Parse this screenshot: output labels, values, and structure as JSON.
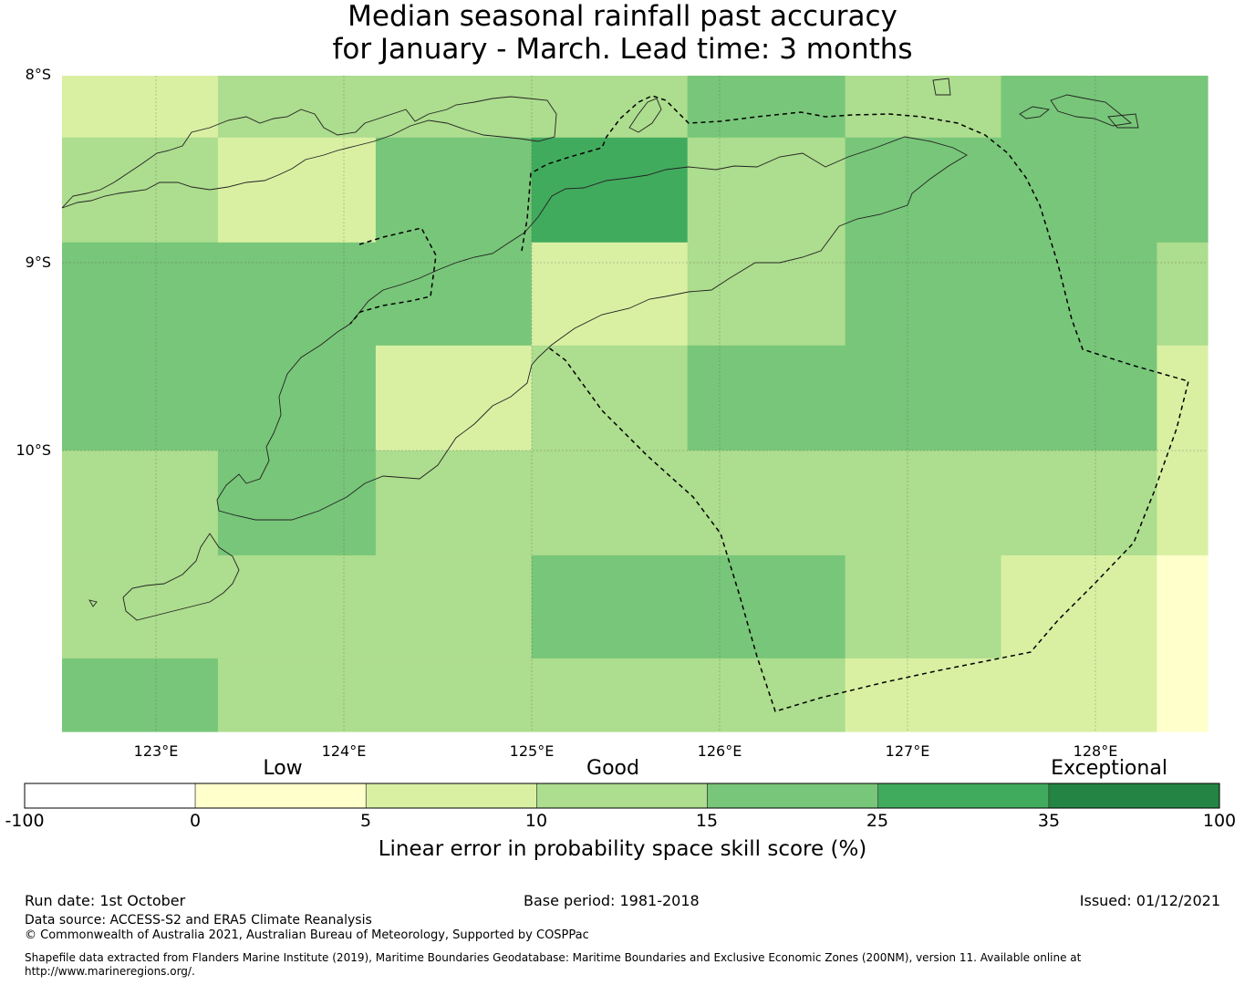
{
  "title": {
    "line1": "Median seasonal rainfall past accuracy",
    "line2": "for January - March. Lead time: 3 months"
  },
  "map": {
    "lat_labels": [
      "8°S",
      "9°S",
      "10°S"
    ],
    "lon_labels": [
      "123°E",
      "124°E",
      "125°E",
      "126°E",
      "127°E",
      "128°E"
    ],
    "lon_range": [
      122.5,
      128.6
    ],
    "lat_range": [
      -11.5,
      -8.0
    ],
    "cells": [
      {
        "lon": [
          122.5,
          123.33
        ],
        "lat": [
          -8.0,
          -8.33
        ],
        "class": "5-10"
      },
      {
        "lon": [
          123.33,
          125.0
        ],
        "lat": [
          -8.0,
          -8.33
        ],
        "class": "10-15"
      },
      {
        "lon": [
          125.0,
          125.83
        ],
        "lat": [
          -8.0,
          -8.33
        ],
        "class": "10-15"
      },
      {
        "lon": [
          125.83,
          126.67
        ],
        "lat": [
          -8.0,
          -8.33
        ],
        "class": "15-25"
      },
      {
        "lon": [
          126.67,
          127.5
        ],
        "lat": [
          -8.0,
          -8.33
        ],
        "class": "10-15"
      },
      {
        "lon": [
          127.5,
          128.6
        ],
        "lat": [
          -8.0,
          -8.33
        ],
        "class": "15-25"
      },
      {
        "lon": [
          122.5,
          123.33
        ],
        "lat": [
          -8.33,
          -8.89
        ],
        "class": "10-15"
      },
      {
        "lon": [
          123.33,
          124.17
        ],
        "lat": [
          -8.33,
          -8.89
        ],
        "class": "5-10"
      },
      {
        "lon": [
          124.17,
          125.0
        ],
        "lat": [
          -8.33,
          -8.89
        ],
        "class": "15-25"
      },
      {
        "lon": [
          125.0,
          125.83
        ],
        "lat": [
          -8.33,
          -8.89
        ],
        "class": "25-35"
      },
      {
        "lon": [
          125.83,
          126.67
        ],
        "lat": [
          -8.33,
          -8.89
        ],
        "class": "10-15"
      },
      {
        "lon": [
          126.67,
          128.6
        ],
        "lat": [
          -8.33,
          -8.89
        ],
        "class": "15-25"
      },
      {
        "lon": [
          122.5,
          125.0
        ],
        "lat": [
          -8.89,
          -9.44
        ],
        "class": "15-25"
      },
      {
        "lon": [
          125.0,
          125.83
        ],
        "lat": [
          -8.89,
          -9.44
        ],
        "class": "5-10"
      },
      {
        "lon": [
          125.83,
          126.67
        ],
        "lat": [
          -8.89,
          -9.44
        ],
        "class": "10-15"
      },
      {
        "lon": [
          126.67,
          128.33
        ],
        "lat": [
          -8.89,
          -9.44
        ],
        "class": "15-25"
      },
      {
        "lon": [
          128.33,
          128.6
        ],
        "lat": [
          -8.89,
          -9.44
        ],
        "class": "10-15"
      },
      {
        "lon": [
          122.5,
          124.17
        ],
        "lat": [
          -9.44,
          -10.0
        ],
        "class": "15-25"
      },
      {
        "lon": [
          124.17,
          125.0
        ],
        "lat": [
          -9.44,
          -10.0
        ],
        "class": "5-10"
      },
      {
        "lon": [
          125.0,
          125.83
        ],
        "lat": [
          -9.44,
          -10.0
        ],
        "class": "10-15"
      },
      {
        "lon": [
          125.83,
          128.33
        ],
        "lat": [
          -9.44,
          -10.0
        ],
        "class": "15-25"
      },
      {
        "lon": [
          128.33,
          128.6
        ],
        "lat": [
          -9.44,
          -10.0
        ],
        "class": "5-10"
      },
      {
        "lon": [
          122.5,
          123.33
        ],
        "lat": [
          -10.0,
          -10.56
        ],
        "class": "10-15"
      },
      {
        "lon": [
          123.33,
          124.17
        ],
        "lat": [
          -10.0,
          -10.56
        ],
        "class": "15-25"
      },
      {
        "lon": [
          124.17,
          128.33
        ],
        "lat": [
          -10.0,
          -10.56
        ],
        "class": "10-15"
      },
      {
        "lon": [
          128.33,
          128.6
        ],
        "lat": [
          -10.0,
          -10.56
        ],
        "class": "5-10"
      },
      {
        "lon": [
          122.5,
          125.0
        ],
        "lat": [
          -10.56,
          -11.11
        ],
        "class": "10-15"
      },
      {
        "lon": [
          125.0,
          126.67
        ],
        "lat": [
          -10.56,
          -11.11
        ],
        "class": "15-25"
      },
      {
        "lon": [
          126.67,
          127.5
        ],
        "lat": [
          -10.56,
          -11.11
        ],
        "class": "10-15"
      },
      {
        "lon": [
          127.5,
          128.33
        ],
        "lat": [
          -10.56,
          -11.11
        ],
        "class": "5-10"
      },
      {
        "lon": [
          128.33,
          128.6
        ],
        "lat": [
          -10.56,
          -11.11
        ],
        "class": "0-5"
      },
      {
        "lon": [
          122.5,
          123.33
        ],
        "lat": [
          -11.11,
          -11.5
        ],
        "class": "15-25"
      },
      {
        "lon": [
          123.33,
          126.67
        ],
        "lat": [
          -11.11,
          -11.5
        ],
        "class": "10-15"
      },
      {
        "lon": [
          126.67,
          128.33
        ],
        "lat": [
          -11.11,
          -11.5
        ],
        "class": "5-10"
      },
      {
        "lon": [
          128.33,
          128.6
        ],
        "lat": [
          -11.11,
          -11.5
        ],
        "class": "0-5"
      }
    ]
  },
  "colorbar": {
    "ticks": [
      "-100",
      "0",
      "5",
      "10",
      "15",
      "25",
      "35",
      "100"
    ],
    "classes": [
      {
        "id": "-100-0",
        "color": "#ffffff"
      },
      {
        "id": "0-5",
        "color": "#ffffcc"
      },
      {
        "id": "5-10",
        "color": "#d9f0a3"
      },
      {
        "id": "10-15",
        "color": "#addd8e"
      },
      {
        "id": "15-25",
        "color": "#78c679"
      },
      {
        "id": "25-35",
        "color": "#41ab5d"
      },
      {
        "id": "35-100",
        "color": "#238443"
      }
    ],
    "categories": [
      "Low",
      "Good",
      "Exceptional"
    ],
    "label": "Linear error in probability space skill score (%)"
  },
  "footer": {
    "run_date": "Run date: 1st October",
    "base_period": "Base period: 1981-2018",
    "issued": "Issued: 01/12/2021",
    "data_source": "Data source: ACCESS-S2 and ERA5 Climate Reanalysis",
    "copyright": "© Commonwealth of Australia 2021, Australian Bureau of Meteorology, Supported by COSPPac",
    "shapefile_line1": "Shapefile data extracted from Flanders Marine Institute (2019), Maritime Boundaries Geodatabase: Maritime Boundaries and Exclusive Economic Zones (200NM), version 11. Available online at",
    "shapefile_line2": "http://www.marineregions.org/."
  }
}
